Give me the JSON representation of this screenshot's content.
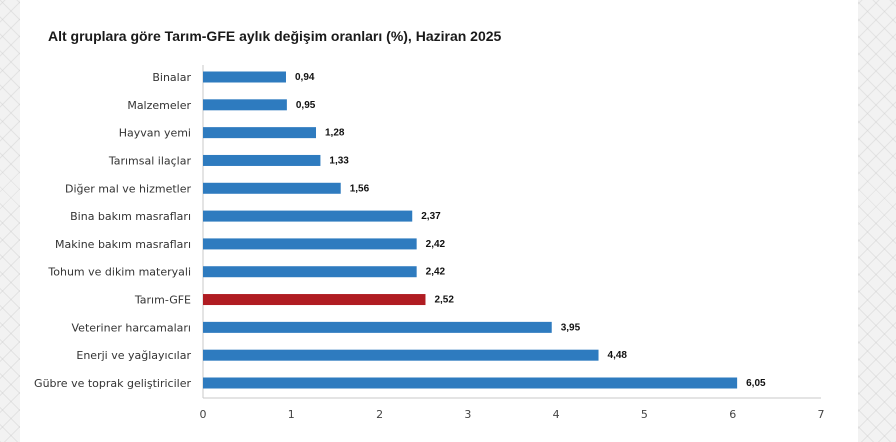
{
  "chart_data": {
    "type": "bar",
    "orientation": "horizontal",
    "title": "Alt gruplara göre Tarım-GFE aylık değişim oranları (%), Haziran 2025",
    "categories": [
      "Binalar",
      "Malzemeler",
      "Hayvan yemi",
      "Tarımsal ilaçlar",
      "Diğer mal ve hizmetler",
      "Bina bakım masrafları",
      "Makine bakım masrafları",
      "Tohum ve dikim materyali",
      "Tarım-GFE",
      "Veteriner harcamaları",
      "Enerji  ve yağlayıcılar",
      "Gübre ve toprak geliştiriciler"
    ],
    "values": [
      0.94,
      0.95,
      1.28,
      1.33,
      1.56,
      2.37,
      2.42,
      2.42,
      2.52,
      3.95,
      4.48,
      6.05
    ],
    "value_labels": [
      "0,94",
      "0,95",
      "1,28",
      "1,33",
      "1,56",
      "2,37",
      "2,42",
      "2,42",
      "2,52",
      "3,95",
      "4,48",
      "6,05"
    ],
    "highlight_category": "Tarım-GFE",
    "xlim": [
      0,
      7
    ],
    "xticks": [
      0,
      1,
      2,
      3,
      4,
      5,
      6,
      7
    ],
    "xtick_labels": [
      "0",
      "1",
      "2",
      "3",
      "4",
      "5",
      "6",
      "7"
    ],
    "grid": false,
    "colors": {
      "bar": "#2e7bbf",
      "highlight": "#b01c22",
      "axis": "#c8c8c8"
    }
  }
}
